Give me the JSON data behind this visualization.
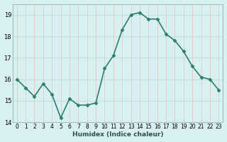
{
  "x": [
    0,
    1,
    2,
    3,
    4,
    5,
    6,
    7,
    8,
    9,
    10,
    11,
    12,
    13,
    14,
    15,
    16,
    17,
    18,
    19,
    20,
    21,
    22,
    23
  ],
  "y": [
    16.0,
    15.6,
    15.2,
    15.8,
    15.3,
    14.2,
    15.1,
    14.8,
    14.8,
    14.9,
    16.5,
    17.1,
    18.3,
    19.0,
    19.1,
    18.8,
    18.8,
    18.1,
    17.8,
    17.3,
    16.6,
    16.1,
    16.0,
    15.5
  ],
  "xlabel": "Humidex (Indice chaleur)",
  "xlim": [
    -0.5,
    23.5
  ],
  "ylim": [
    14.0,
    19.5
  ],
  "yticks": [
    14,
    15,
    16,
    17,
    18,
    19
  ],
  "xticks": [
    0,
    1,
    2,
    3,
    4,
    5,
    6,
    7,
    8,
    9,
    10,
    11,
    12,
    13,
    14,
    15,
    16,
    17,
    18,
    19,
    20,
    21,
    22,
    23
  ],
  "xtick_labels": [
    "0",
    "1",
    "2",
    "3",
    "4",
    "5",
    "6",
    "7",
    "8",
    "9",
    "10",
    "11",
    "12",
    "13",
    "14",
    "15",
    "16",
    "17",
    "18",
    "19",
    "20",
    "21",
    "22",
    "23"
  ],
  "line_color": "#2e7d6e",
  "marker": "D",
  "marker_size": 2.5,
  "line_width": 1.2,
  "bg_color": "#d8f0f0",
  "grid_major_x_color": "#e8c0c0",
  "grid_major_y_color": "#b8d8d8",
  "xlabel_color": "#2e5050"
}
